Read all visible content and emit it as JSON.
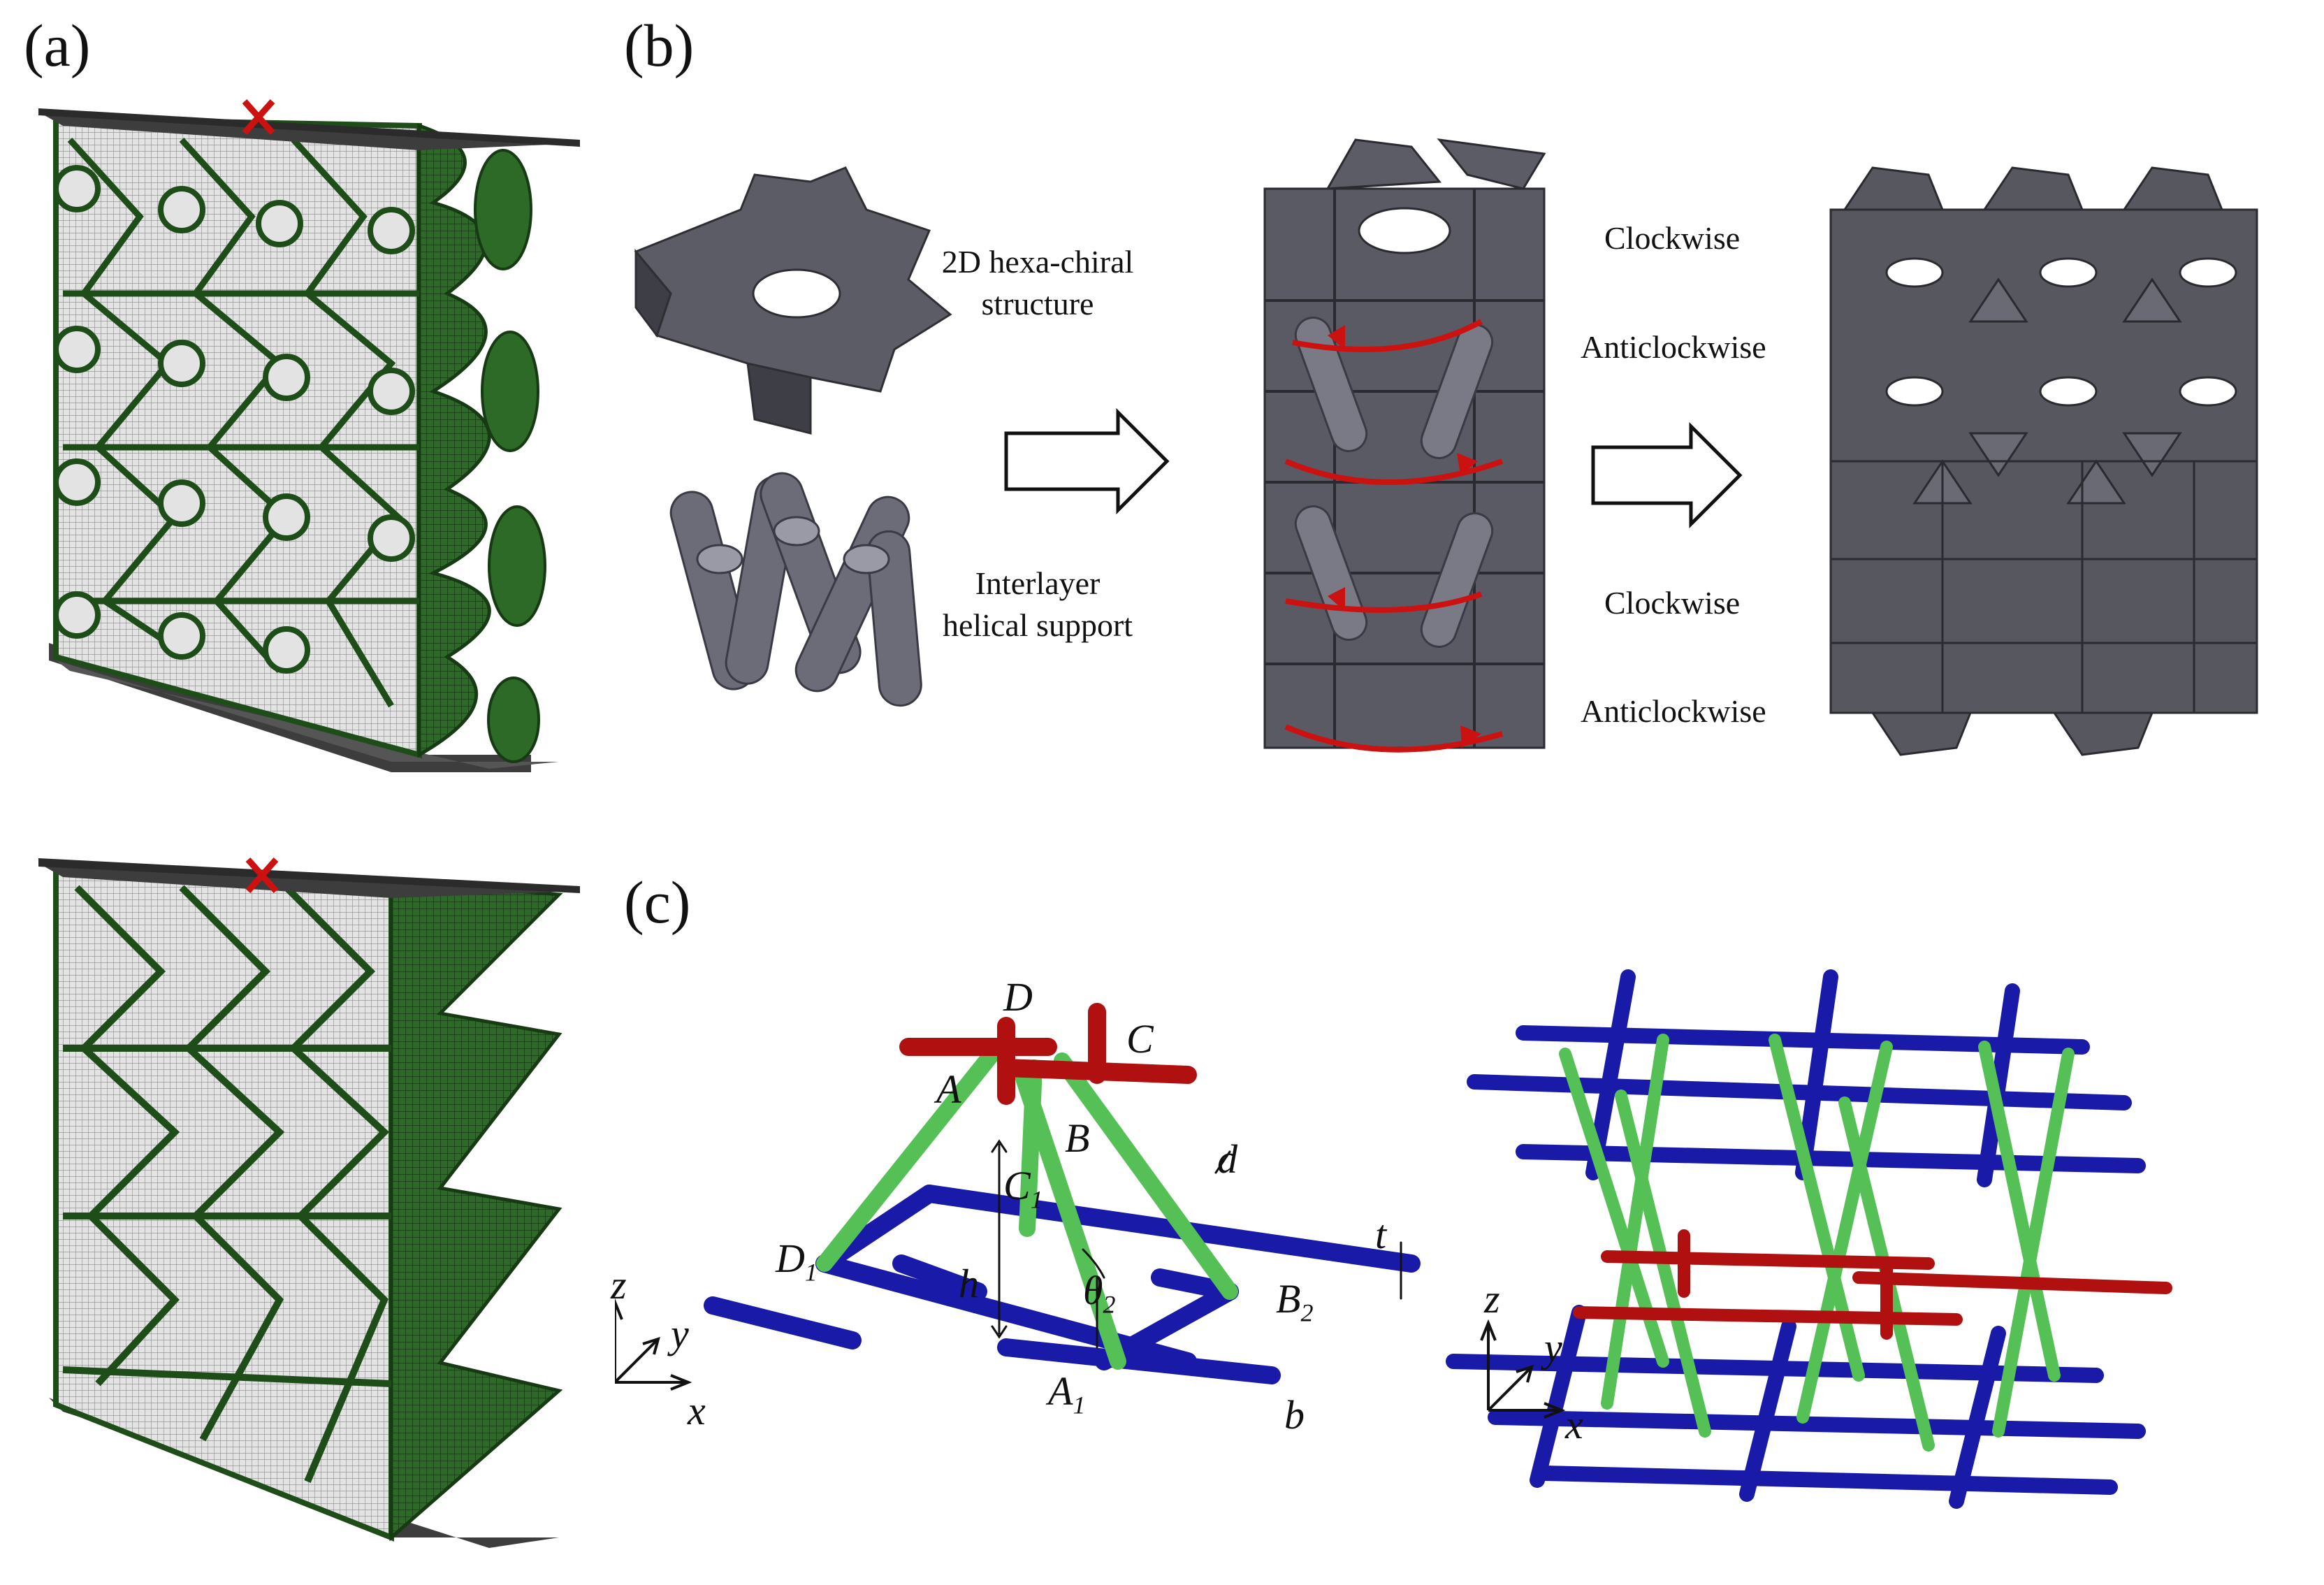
{
  "panels": {
    "a": "(a)",
    "b": "(b)",
    "c": "(c)"
  },
  "panel_b": {
    "label_2d": [
      "2D hexa-chiral",
      "structure"
    ],
    "label_helix": [
      "Interlayer",
      "helical support"
    ],
    "rotation_labels": [
      "Clockwise",
      "Anticlockwise",
      "Clockwise",
      "Anticlockwise"
    ]
  },
  "panel_c": {
    "unit_cell_labels": {
      "D": "D",
      "C": "C",
      "A": "A",
      "B": "B",
      "d": "d",
      "C1": "C",
      "C1_sub": "1",
      "D1": "D",
      "D1_sub": "1",
      "h": "h",
      "theta": "θ",
      "theta_sub": "2",
      "B2": "B",
      "B2_sub": "2",
      "A1": "A",
      "A1_sub": "1",
      "t": "t",
      "b": "b"
    },
    "axes": {
      "z": "z",
      "y": "y",
      "x": "x"
    }
  },
  "colors": {
    "mesh_green": "#1e4d1a",
    "mesh_gray": "#d9d9d9",
    "plate": "#4a4a4a",
    "solid_gray": "#5c5c66",
    "arrow_red": "#cc1111",
    "strut_blue": "#1a1aa8",
    "strut_green": "#55c055",
    "strut_red": "#b01010"
  }
}
